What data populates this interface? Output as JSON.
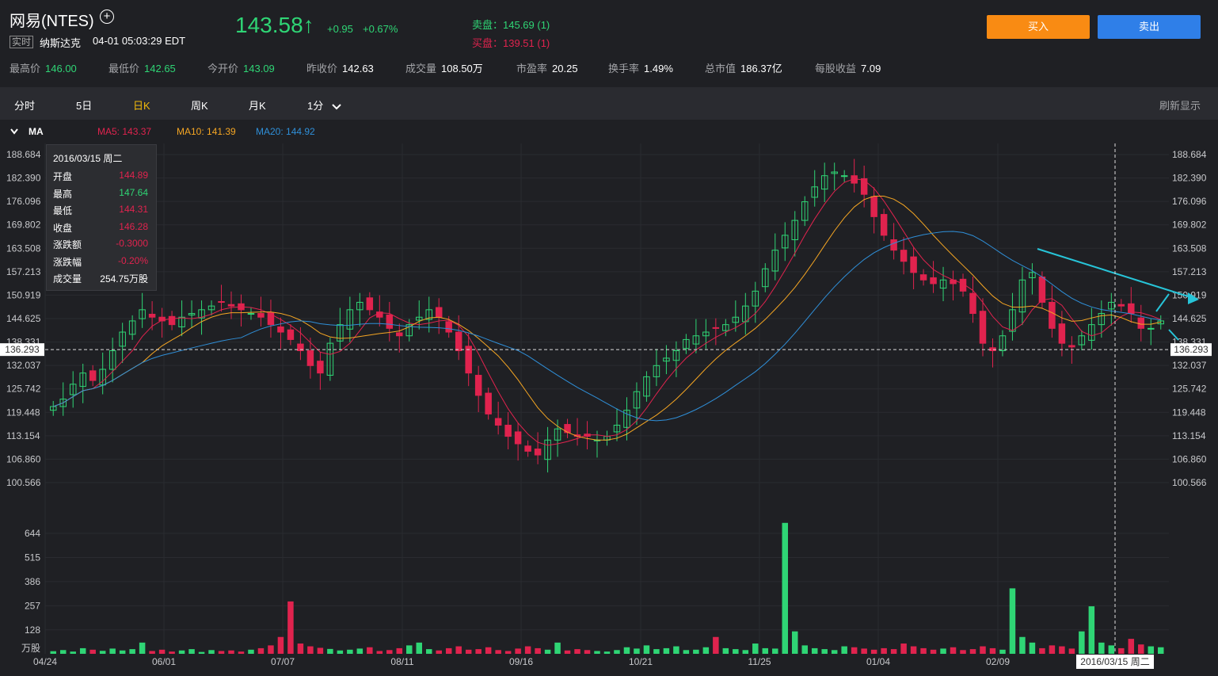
{
  "header": {
    "stock_name": "网易(NTES)",
    "realtime_tag": "实时",
    "exchange": "纳斯达克",
    "quote_time": "04-01 05:03:29 EDT",
    "price": "143.58",
    "arrow": "↑",
    "change": "+0.95",
    "change_pct": "+0.67%",
    "ask": "卖盘：145.69 (1)",
    "bid": "买盘：139.51 (1)",
    "buy_label": "买入",
    "sell_label": "卖出"
  },
  "stats": [
    {
      "label": "最高价",
      "value": "146.00",
      "color": "#2fd575"
    },
    {
      "label": "最低价",
      "value": "142.65",
      "color": "#2fd575"
    },
    {
      "label": "今开价",
      "value": "143.09",
      "color": "#2fd575"
    },
    {
      "label": "昨收价",
      "value": "142.63",
      "color": "#ffffff"
    },
    {
      "label": "成交量",
      "value": "108.50万",
      "color": "#ffffff"
    },
    {
      "label": "市盈率",
      "value": "20.25",
      "color": "#ffffff"
    },
    {
      "label": "换手率",
      "value": "1.49%",
      "color": "#ffffff"
    },
    {
      "label": "总市值",
      "value": "186.37亿",
      "color": "#ffffff"
    },
    {
      "label": "每股收益",
      "value": "7.09",
      "color": "#ffffff"
    }
  ],
  "tabs": [
    {
      "label": "分时",
      "active": false
    },
    {
      "label": "5日",
      "active": false
    },
    {
      "label": "日K",
      "active": true
    },
    {
      "label": "周K",
      "active": false
    },
    {
      "label": "月K",
      "active": false
    },
    {
      "label": "1分",
      "active": false
    }
  ],
  "refresh_label": "刷新显示",
  "ma_bar": {
    "toggle": "MA",
    "ma5": "MA5: 143.37",
    "ma10": "MA10: 141.39",
    "ma20": "MA20: 144.92"
  },
  "colors": {
    "up": "#2fd575",
    "down": "#e0234e",
    "ma5": "#e0234e",
    "ma10": "#f5a623",
    "ma20": "#2f8fd8",
    "trend": "#27c4d8"
  },
  "tooltip": {
    "date": "2016/03/15 周二",
    "rows": [
      {
        "label": "开盘",
        "value": "144.89",
        "color": "#e0234e"
      },
      {
        "label": "最高",
        "value": "147.64",
        "color": "#2fd575"
      },
      {
        "label": "最低",
        "value": "144.31",
        "color": "#e0234e"
      },
      {
        "label": "收盘",
        "value": "146.28",
        "color": "#e0234e"
      },
      {
        "label": "涨跌额",
        "value": "-0.3000",
        "color": "#e0234e"
      },
      {
        "label": "涨跌幅",
        "value": "-0.20%",
        "color": "#e0234e"
      },
      {
        "label": "成交量",
        "value": "254.75万股",
        "color": "#ffffff"
      }
    ]
  },
  "chart_data": {
    "type": "candlestick",
    "price_ticks": [
      "188.684",
      "182.390",
      "176.096",
      "169.802",
      "163.508",
      "157.213",
      "150.919",
      "144.625",
      "138.331",
      "132.037",
      "125.742",
      "119.448",
      "113.154",
      "106.860",
      "100.566"
    ],
    "price_range": [
      100.566,
      188.684
    ],
    "crosshair_price": "136.293",
    "volume_ticks": [
      "644",
      "515",
      "386",
      "257",
      "128"
    ],
    "volume_unit": "万股",
    "volume_range": [
      0,
      644
    ],
    "x_labels": [
      "04/24",
      "06/01",
      "07/07",
      "08/11",
      "09/16",
      "10/21",
      "11/25",
      "01/04",
      "02/09"
    ],
    "crosshair_date": "2016/03/15 周二",
    "close_series": [
      121,
      123,
      127,
      130,
      128,
      131,
      136,
      141,
      144,
      147,
      145,
      144,
      143,
      145,
      146,
      147,
      148,
      149,
      148,
      147,
      146,
      145,
      143,
      141,
      139,
      136,
      132,
      130,
      138,
      143,
      147,
      149,
      147,
      145,
      142,
      140,
      143,
      145,
      147,
      145,
      141,
      136,
      130,
      124,
      119,
      116,
      113,
      111,
      109,
      108,
      112,
      115,
      114,
      113,
      113,
      112,
      113,
      116,
      120,
      125,
      129,
      132,
      134,
      136,
      139,
      140,
      141,
      142,
      143,
      145,
      148,
      152,
      158,
      163,
      167,
      171,
      176,
      180,
      183,
      184,
      183,
      181,
      178,
      172,
      167,
      163,
      160,
      157,
      155,
      154,
      155,
      154,
      152,
      146,
      138,
      136,
      140,
      147,
      155,
      157,
      149,
      142,
      138,
      137,
      140,
      143,
      146,
      149,
      148,
      146,
      142,
      142,
      144
    ],
    "volume_series": [
      14,
      20,
      12,
      30,
      22,
      16,
      28,
      18,
      25,
      60,
      15,
      22,
      12,
      18,
      25,
      10,
      20,
      15,
      18,
      12,
      22,
      30,
      45,
      90,
      280,
      55,
      40,
      32,
      26,
      18,
      22,
      28,
      35,
      15,
      20,
      30,
      45,
      60,
      25,
      18,
      30,
      40,
      22,
      25,
      35,
      20,
      15,
      28,
      40,
      30,
      22,
      60,
      18,
      25,
      20,
      15,
      12,
      20,
      35,
      28,
      45,
      25,
      30,
      40,
      20,
      22,
      35,
      90,
      30,
      25,
      20,
      55,
      30,
      28,
      700,
      120,
      45,
      30,
      25,
      20,
      40,
      35,
      28,
      22,
      30,
      25,
      55,
      40,
      30,
      22,
      28,
      35,
      20,
      25,
      40,
      30,
      22,
      350,
      90,
      60,
      30,
      45,
      40,
      28,
      120,
      254,
      60,
      45,
      30,
      80,
      50,
      40,
      35
    ]
  }
}
